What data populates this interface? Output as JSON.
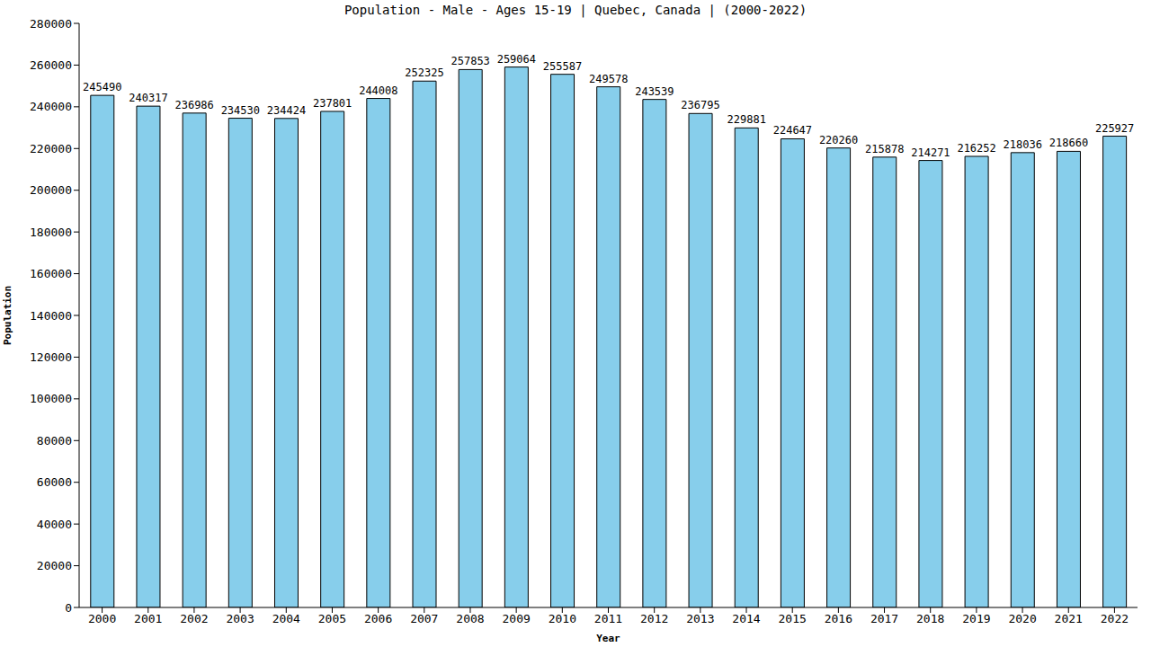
{
  "chart_data": {
    "type": "bar",
    "title": "Population - Male - Ages 15-19 | Quebec, Canada |  (2000-2022)",
    "x_label": "Year",
    "y_label": "Population",
    "categories": [
      "2000",
      "2001",
      "2002",
      "2003",
      "2004",
      "2005",
      "2006",
      "2007",
      "2008",
      "2009",
      "2010",
      "2011",
      "2012",
      "2013",
      "2014",
      "2015",
      "2016",
      "2017",
      "2018",
      "2019",
      "2020",
      "2021",
      "2022"
    ],
    "values": [
      245490,
      240317,
      236986,
      234530,
      234424,
      237801,
      244008,
      252325,
      257853,
      259064,
      255587,
      249578,
      243539,
      236795,
      229881,
      224647,
      220260,
      215878,
      214271,
      216252,
      218036,
      218660,
      225927
    ],
    "color": "#87ceeb",
    "ylim": [
      0,
      280000
    ],
    "yticks": [
      0,
      20000,
      40000,
      60000,
      80000,
      100000,
      120000,
      140000,
      160000,
      180000,
      200000,
      220000,
      240000,
      260000,
      280000
    ],
    "grid": false,
    "data_labels": true
  }
}
